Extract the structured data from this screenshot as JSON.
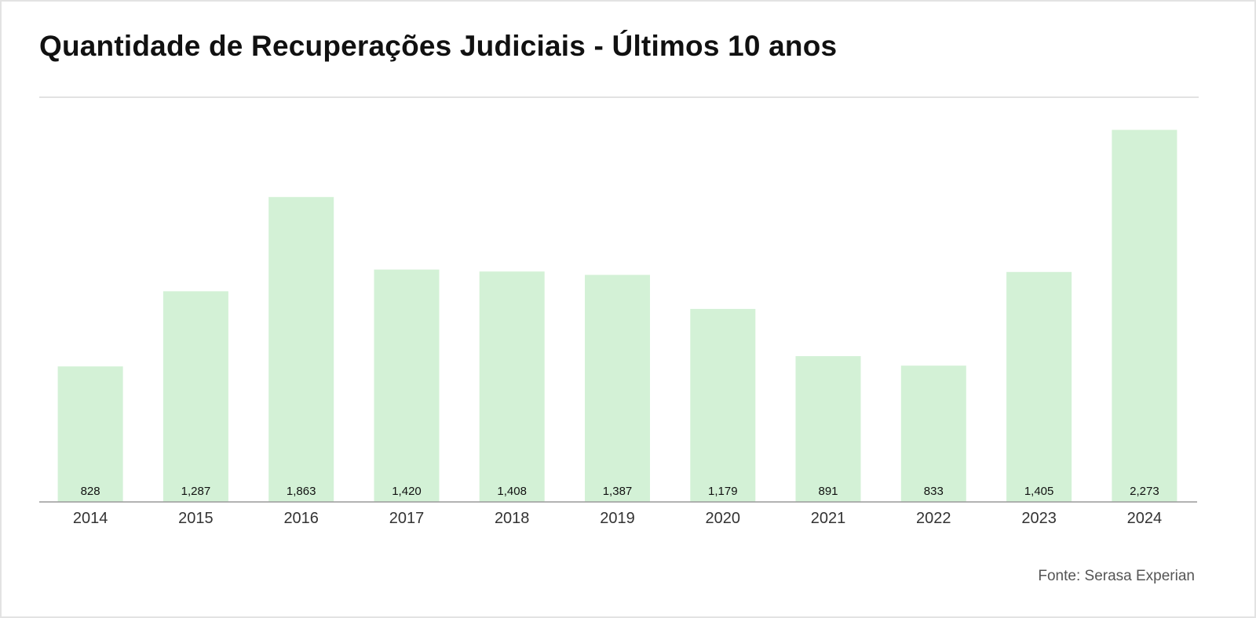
{
  "header": {
    "title": "Quantidade de Recuperações Judiciais - Últimos 10 anos"
  },
  "footer": {
    "source": "Fonte: Serasa Experian"
  },
  "colors": {
    "bar": "#d3f1d6",
    "axis": "#9a9a9a",
    "label": "#111111",
    "tick": "#333333"
  },
  "chart_data": {
    "type": "bar",
    "title": "Quantidade de Recuperações Judiciais - Últimos 10 anos",
    "xlabel": "",
    "ylabel": "",
    "categories": [
      "2014",
      "2015",
      "2016",
      "2017",
      "2018",
      "2019",
      "2020",
      "2021",
      "2022",
      "2023",
      "2024"
    ],
    "values": [
      828,
      1287,
      1863,
      1420,
      1408,
      1387,
      1179,
      891,
      833,
      1405,
      2273
    ],
    "value_labels": [
      "828",
      "1,287",
      "1,863",
      "1,420",
      "1,408",
      "1,387",
      "1,179",
      "891",
      "833",
      "1,405",
      "2,273"
    ],
    "ylim": [
      0,
      2300
    ],
    "grid": false,
    "legend": "none",
    "data_label_position": "inside-bottom"
  }
}
